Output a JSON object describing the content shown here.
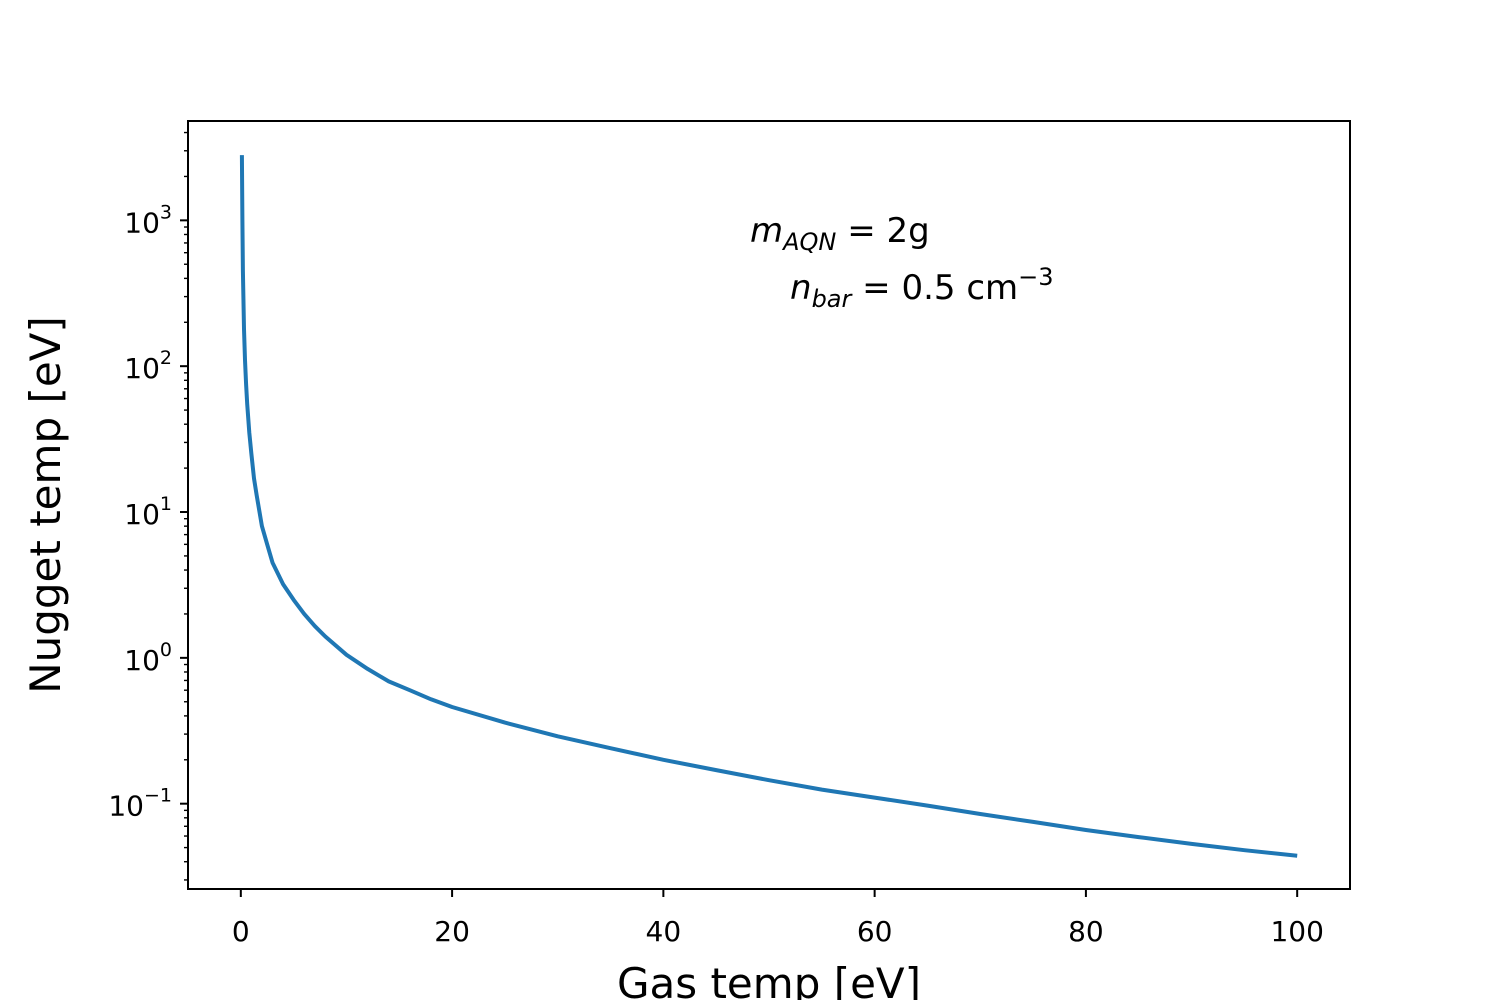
{
  "chart_data": {
    "type": "line",
    "xlabel": "Gas temp [eV]",
    "ylabel": "Nugget temp [eV]",
    "xlim": [
      -5,
      105
    ],
    "ylim": [
      0.026,
      4800
    ],
    "yscale": "log",
    "grid": false,
    "x_ticks": [
      0,
      20,
      40,
      60,
      80,
      100
    ],
    "y_ticks": [
      {
        "base": "10",
        "exp": "−1",
        "value": 0.1
      },
      {
        "base": "10",
        "exp": "0",
        "value": 1
      },
      {
        "base": "10",
        "exp": "1",
        "value": 10
      },
      {
        "base": "10",
        "exp": "2",
        "value": 100
      },
      {
        "base": "10",
        "exp": "3",
        "value": 1000
      }
    ],
    "annotations": [
      {
        "var": "m",
        "sub": "AQN",
        "rest": " = 2g"
      },
      {
        "var": "n",
        "sub": "bar",
        "rest": " = 0.5 cm",
        "sup": "−3"
      }
    ],
    "series": [
      {
        "color": "#1f77b4",
        "x": [
          0.1,
          0.15,
          0.2,
          0.3,
          0.4,
          0.5,
          0.6,
          0.8,
          1,
          1.25,
          1.5,
          2,
          2.5,
          3,
          4,
          5,
          6,
          7,
          8,
          10,
          12,
          14,
          16,
          18,
          20,
          25,
          30,
          35,
          40,
          45,
          50,
          55,
          60,
          65,
          70,
          75,
          80,
          85,
          90,
          95,
          100
        ],
        "y": [
          2800,
          1000,
          450,
          180,
          110,
          75,
          55,
          35,
          25,
          17,
          13,
          8,
          6,
          4.5,
          3.2,
          2.5,
          2.0,
          1.65,
          1.4,
          1.05,
          0.84,
          0.69,
          0.6,
          0.52,
          0.46,
          0.36,
          0.29,
          0.24,
          0.2,
          0.17,
          0.145,
          0.125,
          0.11,
          0.097,
          0.085,
          0.075,
          0.066,
          0.059,
          0.053,
          0.048,
          0.044
        ]
      }
    ]
  }
}
